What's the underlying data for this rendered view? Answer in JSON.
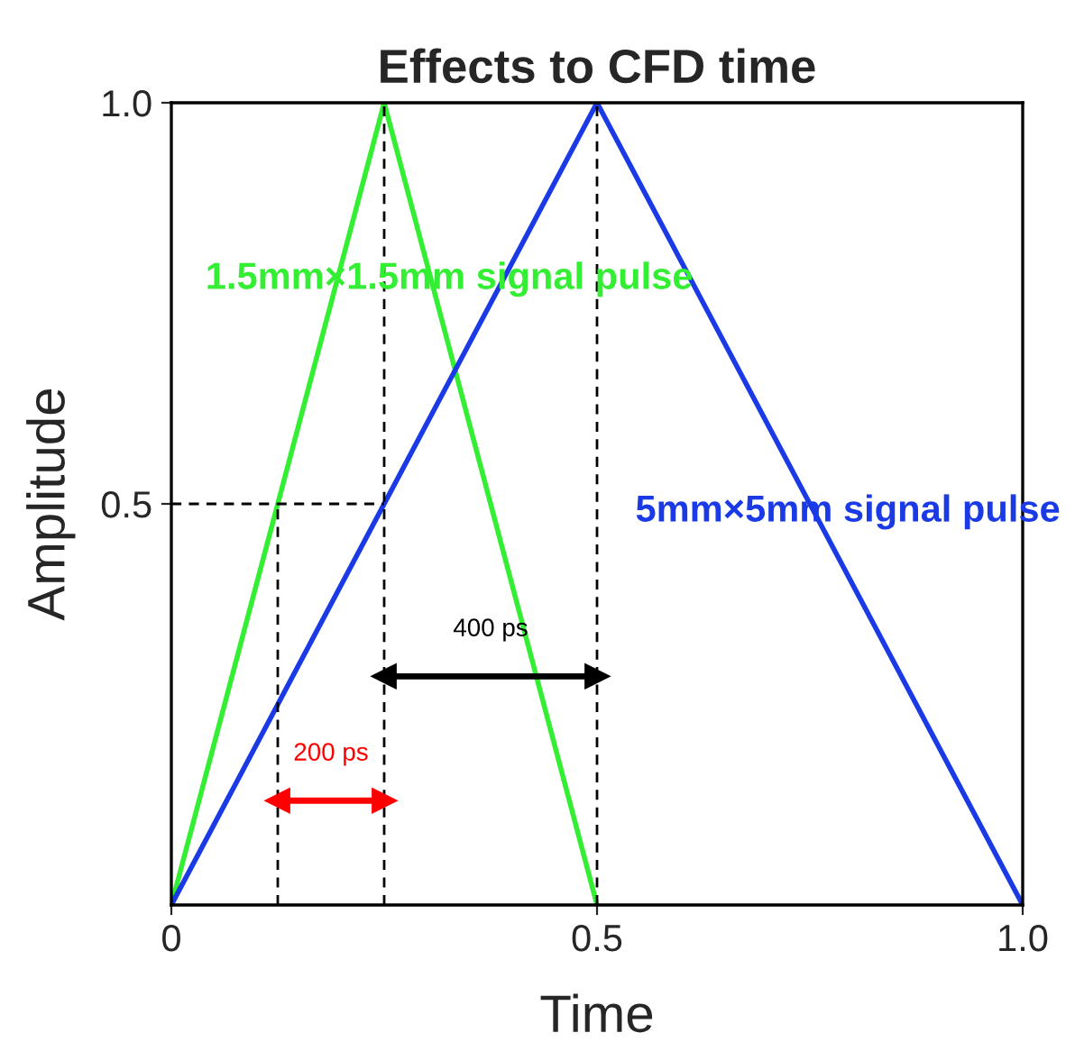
{
  "chart_data": {
    "type": "line",
    "title": "Effects to CFD time",
    "xlabel": "Time",
    "ylabel": "Amplitude",
    "xlim": [
      0,
      1.0
    ],
    "ylim": [
      0,
      1.0
    ],
    "xticks": [
      0,
      0.5,
      {
        "value": 1.0,
        "label": "1.0"
      }
    ],
    "yticks": [
      0.5,
      {
        "value": 1.0,
        "label": "1.0"
      }
    ],
    "grid": false,
    "legend": false,
    "series": [
      {
        "name": "1.5mm×1.5mm signal pulse",
        "color": "#33ee33",
        "x": [
          0,
          0.25,
          0.5
        ],
        "values": [
          0,
          1.0,
          0
        ],
        "line_style": "solid"
      },
      {
        "name": "5mm×5mm signal pulse",
        "color": "#1a3ae6",
        "x": [
          0,
          0.5,
          1.0
        ],
        "values": [
          0,
          1.0,
          0
        ],
        "line_style": "solid"
      },
      {
        "color": "#000000",
        "x": [
          0,
          0.25
        ],
        "values": [
          0.5,
          0.5
        ],
        "line_style": "dashed"
      },
      {
        "color": "#000000",
        "x": [
          0.125,
          0.125
        ],
        "values": [
          0,
          0.5
        ],
        "line_style": "dashed"
      },
      {
        "color": "#000000",
        "x": [
          0.25,
          0.25
        ],
        "values": [
          0,
          1.0
        ],
        "line_style": "dashed"
      },
      {
        "color": "#000000",
        "x": [
          0.5,
          0.5
        ],
        "values": [
          0,
          1.0
        ],
        "line_style": "dashed"
      },
      {
        "name": "400 ps",
        "color": "#000000",
        "x": [
          0.25,
          0.5
        ],
        "values": [
          0.285,
          0.285
        ],
        "line_style": "solid",
        "marker": "triangle"
      },
      {
        "name": "200 ps",
        "color": "#ff0000",
        "x": [
          0.125,
          0.25
        ],
        "values": [
          0.13,
          0.13
        ],
        "line_style": "solid",
        "marker": "triangle"
      }
    ]
  }
}
